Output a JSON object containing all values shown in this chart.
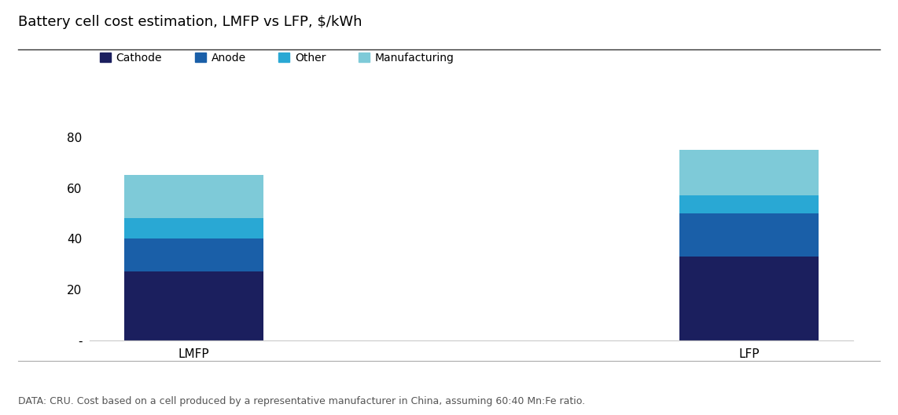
{
  "title": "Battery cell cost estimation, LMFP vs LFP, $/kWh",
  "footnote": "DATA: CRU. Cost based on a cell produced by a representative manufacturer in China, assuming 60:40 Mn:Fe ratio.",
  "categories": [
    "LMFP",
    "LFP"
  ],
  "series": {
    "Cathode": [
      27,
      33
    ],
    "Anode": [
      13,
      17
    ],
    "Other": [
      8,
      7
    ],
    "Manufacturing": [
      17,
      18
    ]
  },
  "colors": {
    "Cathode": "#1b1f5e",
    "Anode": "#1a5fa8",
    "Other": "#29a8d4",
    "Manufacturing": "#7ecad8"
  },
  "ylim": [
    0,
    85
  ],
  "yticks": [
    0,
    20,
    40,
    60,
    80
  ],
  "ytick_labels": [
    "-",
    "20",
    "40",
    "60",
    "80"
  ],
  "bar_width": 0.25,
  "figsize": [
    11.42,
    5.29
  ],
  "dpi": 100,
  "title_fontsize": 13,
  "legend_fontsize": 10,
  "tick_fontsize": 11,
  "footnote_fontsize": 9,
  "background_color": "#ffffff"
}
